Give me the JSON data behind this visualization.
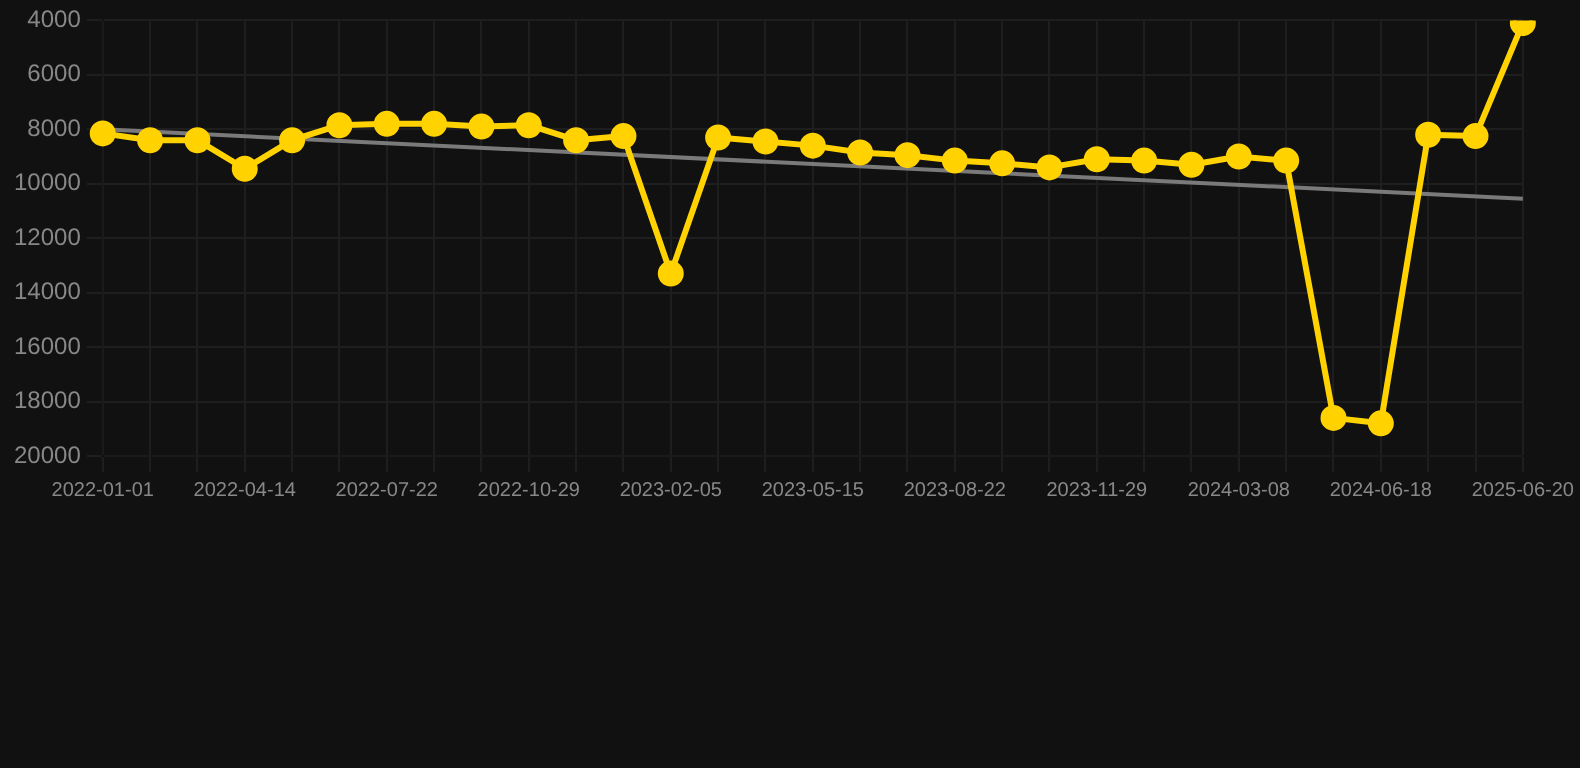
{
  "chart_data": {
    "type": "line",
    "categories": [
      "2022-01-01",
      null,
      null,
      "2022-04-14",
      null,
      null,
      "2022-07-22",
      null,
      null,
      "2022-10-29",
      null,
      null,
      "2023-02-05",
      null,
      null,
      "2023-05-15",
      null,
      null,
      "2023-08-22",
      null,
      null,
      "2023-11-29",
      null,
      null,
      "2024-03-08",
      null,
      null,
      "2024-06-18",
      null,
      null,
      "2025-06-20"
    ],
    "series": [
      {
        "color": "#ffd200",
        "values": [
          8150,
          8400,
          8400,
          9450,
          8400,
          7850,
          7800,
          7800,
          7900,
          7850,
          8400,
          8250,
          13300,
          8300,
          8450,
          8600,
          8850,
          8950,
          9150,
          9250,
          9400,
          9100,
          9150,
          9300,
          9000,
          9150,
          18600,
          18800,
          8200,
          8250,
          4100
        ]
      },
      {
        "type": "line",
        "color": "#7a7a7a",
        "marker": "none",
        "values": [
          8000,
          null,
          null,
          null,
          null,
          null,
          null,
          null,
          null,
          null,
          null,
          null,
          null,
          null,
          null,
          null,
          null,
          null,
          null,
          null,
          null,
          null,
          null,
          null,
          null,
          null,
          null,
          null,
          null,
          null,
          10550
        ]
      }
    ],
    "ylim": [
      20000,
      4000
    ],
    "yticks": [
      4000,
      6000,
      8000,
      10000,
      12000,
      14000,
      16000,
      18000,
      20000
    ],
    "grid": true,
    "marker": "circle",
    "legend": false
  }
}
